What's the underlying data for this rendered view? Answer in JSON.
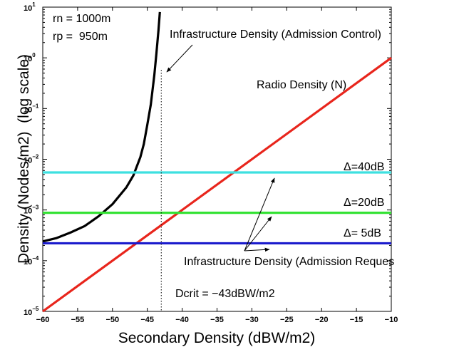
{
  "chart_data": {
    "type": "line",
    "xlabel": "Secondary Density (dBW/m2)",
    "ylabel": "Density (Nodes/m2)  (log scale)",
    "xlim": [
      -60,
      -10
    ],
    "ylim": [
      1e-05,
      10
    ],
    "y_scale": "log",
    "grid": false,
    "x_ticks": [
      -60,
      -55,
      -50,
      -45,
      -40,
      -35,
      -30,
      -25,
      -20,
      -15,
      -10
    ],
    "x_tick_labels": [
      "−60",
      "−55",
      "−50",
      "−45",
      "−40",
      "−35",
      "−30",
      "−25",
      "−20",
      "−15",
      "−10"
    ],
    "y_tick_labels": [
      {
        "value": 1e-05,
        "base": "10",
        "exp": "−5"
      },
      {
        "value": 0.0001,
        "base": "10",
        "exp": "−4"
      },
      {
        "value": 0.001,
        "base": "10",
        "exp": "−3"
      },
      {
        "value": 0.01,
        "base": "10",
        "exp": "−2"
      },
      {
        "value": 0.1,
        "base": "10",
        "exp": "−1"
      },
      {
        "value": 1,
        "base": "10",
        "exp": "0"
      },
      {
        "value": 10,
        "base": "10",
        "exp": "1"
      }
    ],
    "params": [
      "rn = 1000m",
      "rp =  950m"
    ],
    "series": [
      {
        "name": "Infrastructure Density (Admission Control)",
        "color": "#000000",
        "x": [
          -60,
          -58,
          -56,
          -54,
          -52,
          -50,
          -48,
          -47,
          -46,
          -45.5,
          -45,
          -44.5,
          -44,
          -43.7,
          -43.4,
          -43.2
        ],
        "y": [
          0.00024,
          0.00028,
          0.00036,
          0.00048,
          0.00075,
          0.0013,
          0.0028,
          0.0048,
          0.011,
          0.02,
          0.048,
          0.12,
          0.45,
          1.2,
          3.5,
          8
        ]
      },
      {
        "name": "Radio Density (N)",
        "color": "#e8251c",
        "x": [
          -60,
          -10
        ],
        "y": [
          1e-05,
          1
        ]
      },
      {
        "name": "Δ=40dB",
        "color": "#3ee0e0",
        "x": [
          -60,
          -10
        ],
        "y": [
          0.0055,
          0.0055
        ]
      },
      {
        "name": "Δ=20dB",
        "color": "#33e233",
        "x": [
          -60,
          -10
        ],
        "y": [
          0.00088,
          0.00088
        ]
      },
      {
        "name": "Δ= 5dB",
        "color": "#1a1acc",
        "x": [
          -60,
          -10
        ],
        "y": [
          0.00022,
          0.00022
        ]
      }
    ],
    "reference_line": {
      "x": -43,
      "label": "Dcrit = −43dBW/m2"
    },
    "annotations": {
      "admission_control": "Infrastructure Density (Admission Control)",
      "radio": "Radio Density (N)",
      "admission_request": "Infrastructure Density (Admission Reques",
      "delta40": {
        "symbol": "Δ",
        "text": "=40dB"
      },
      "delta20": {
        "symbol": "Δ",
        "text": "=20dB"
      },
      "delta5": {
        "symbol": "Δ",
        "text": "= 5dB"
      }
    }
  }
}
